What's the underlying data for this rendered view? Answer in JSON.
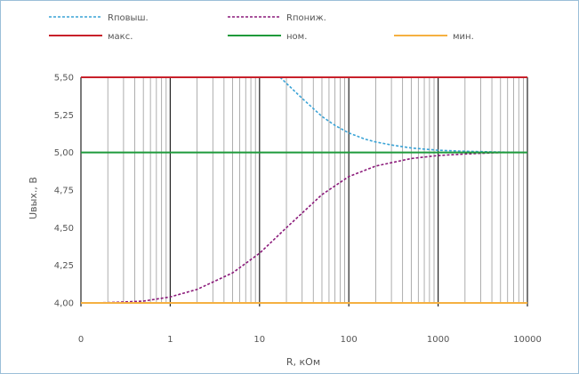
{
  "chart_data": {
    "type": "line",
    "title": "",
    "xlabel": "R, кОм",
    "ylabel": "Uвых., В",
    "x_scale": "log",
    "x_ticks": [
      {
        "value": 0.1,
        "label": "0"
      },
      {
        "value": 1,
        "label": "1"
      },
      {
        "value": 10,
        "label": "10"
      },
      {
        "value": 100,
        "label": "100"
      },
      {
        "value": 1000,
        "label": "1000"
      },
      {
        "value": 10000,
        "label": "10000"
      }
    ],
    "xlim": [
      0.1,
      10000
    ],
    "ylim": [
      4.0,
      5.5
    ],
    "y_ticks": [
      {
        "value": 4.0,
        "label": "4,00"
      },
      {
        "value": 4.25,
        "label": "4,25"
      },
      {
        "value": 4.5,
        "label": "4,50"
      },
      {
        "value": 4.75,
        "label": "4,75"
      },
      {
        "value": 5.0,
        "label": "5,00"
      },
      {
        "value": 5.25,
        "label": "5,25"
      },
      {
        "value": 5.5,
        "label": "5,50"
      }
    ],
    "grid": "vertical log gridlines",
    "legend_position": "top",
    "series": [
      {
        "name": "Rповыш.",
        "color": "#3aa3d6",
        "style": "dashed",
        "x": [
          17,
          20,
          30,
          50,
          70,
          100,
          150,
          200,
          300,
          500,
          1000,
          2000,
          5000,
          10000
        ],
        "y": [
          5.5,
          5.46,
          5.36,
          5.24,
          5.18,
          5.13,
          5.09,
          5.07,
          5.05,
          5.03,
          5.015,
          5.008,
          5.003,
          5.0
        ]
      },
      {
        "name": "Rпониж.",
        "color": "#8b1a7a",
        "style": "dashed",
        "x": [
          0.1,
          0.2,
          0.5,
          1,
          2,
          5,
          10,
          20,
          50,
          100,
          200,
          500,
          1000,
          2000,
          5000,
          10000
        ],
        "y": [
          4.0,
          4.002,
          4.012,
          4.04,
          4.09,
          4.2,
          4.33,
          4.5,
          4.72,
          4.84,
          4.91,
          4.96,
          4.98,
          4.99,
          5.0,
          5.0
        ]
      },
      {
        "name": "макс.",
        "color": "#c8202a",
        "style": "solid",
        "constant": 5.5
      },
      {
        "name": "ном.",
        "color": "#1f9a3b",
        "style": "solid",
        "constant": 5.0
      },
      {
        "name": "мин.",
        "color": "#f5b041",
        "style": "solid",
        "constant": 4.0
      }
    ]
  }
}
